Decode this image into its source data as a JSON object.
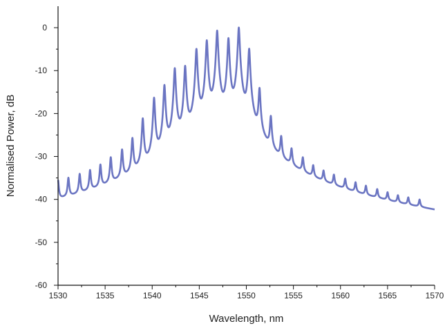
{
  "chart_data": {
    "type": "line",
    "title": "",
    "xlabel": "Wavelength, nm",
    "ylabel": "Normalised Power, dB",
    "xlim": [
      1530,
      1570
    ],
    "ylim": [
      -60,
      5
    ],
    "xticks": [
      1530,
      1535,
      1540,
      1545,
      1550,
      1555,
      1560,
      1565,
      1570
    ],
    "yticks": [
      0,
      -10,
      -20,
      -30,
      -40,
      -50,
      -60
    ],
    "grid": false,
    "legend": "none",
    "baseline_db": -57.5,
    "series": [
      {
        "color": "#6b75c2",
        "peaks": [
          {
            "x": 1530.0,
            "y": -37.5
          },
          {
            "x": 1531.1,
            "y": -37.0
          },
          {
            "x": 1532.3,
            "y": -36.0
          },
          {
            "x": 1533.4,
            "y": -35.0
          },
          {
            "x": 1534.5,
            "y": -33.5
          },
          {
            "x": 1535.6,
            "y": -31.5
          },
          {
            "x": 1536.8,
            "y": -29.5
          },
          {
            "x": 1537.9,
            "y": -26.5
          },
          {
            "x": 1539.0,
            "y": -21.5
          },
          {
            "x": 1540.2,
            "y": -16.5
          },
          {
            "x": 1541.3,
            "y": -13.5
          },
          {
            "x": 1542.4,
            "y": -9.5
          },
          {
            "x": 1543.5,
            "y": -9.0
          },
          {
            "x": 1544.7,
            "y": -5.0
          },
          {
            "x": 1545.8,
            "y": -3.0
          },
          {
            "x": 1546.9,
            "y": -0.7
          },
          {
            "x": 1548.1,
            "y": -2.5
          },
          {
            "x": 1549.2,
            "y": 0.0
          },
          {
            "x": 1550.3,
            "y": -5.0
          },
          {
            "x": 1551.4,
            "y": -14.5
          },
          {
            "x": 1552.6,
            "y": -21.5
          },
          {
            "x": 1553.7,
            "y": -27.0
          },
          {
            "x": 1554.8,
            "y": -30.5
          },
          {
            "x": 1556.0,
            "y": -33.0
          },
          {
            "x": 1557.1,
            "y": -35.5
          },
          {
            "x": 1558.2,
            "y": -37.0
          },
          {
            "x": 1559.3,
            "y": -38.0
          },
          {
            "x": 1560.5,
            "y": -39.0
          },
          {
            "x": 1561.6,
            "y": -40.0
          },
          {
            "x": 1562.7,
            "y": -41.0
          },
          {
            "x": 1563.9,
            "y": -42.0
          },
          {
            "x": 1565.0,
            "y": -43.0
          },
          {
            "x": 1566.1,
            "y": -44.0
          },
          {
            "x": 1567.2,
            "y": -44.5
          },
          {
            "x": 1568.4,
            "y": -45.0
          }
        ]
      }
    ]
  }
}
